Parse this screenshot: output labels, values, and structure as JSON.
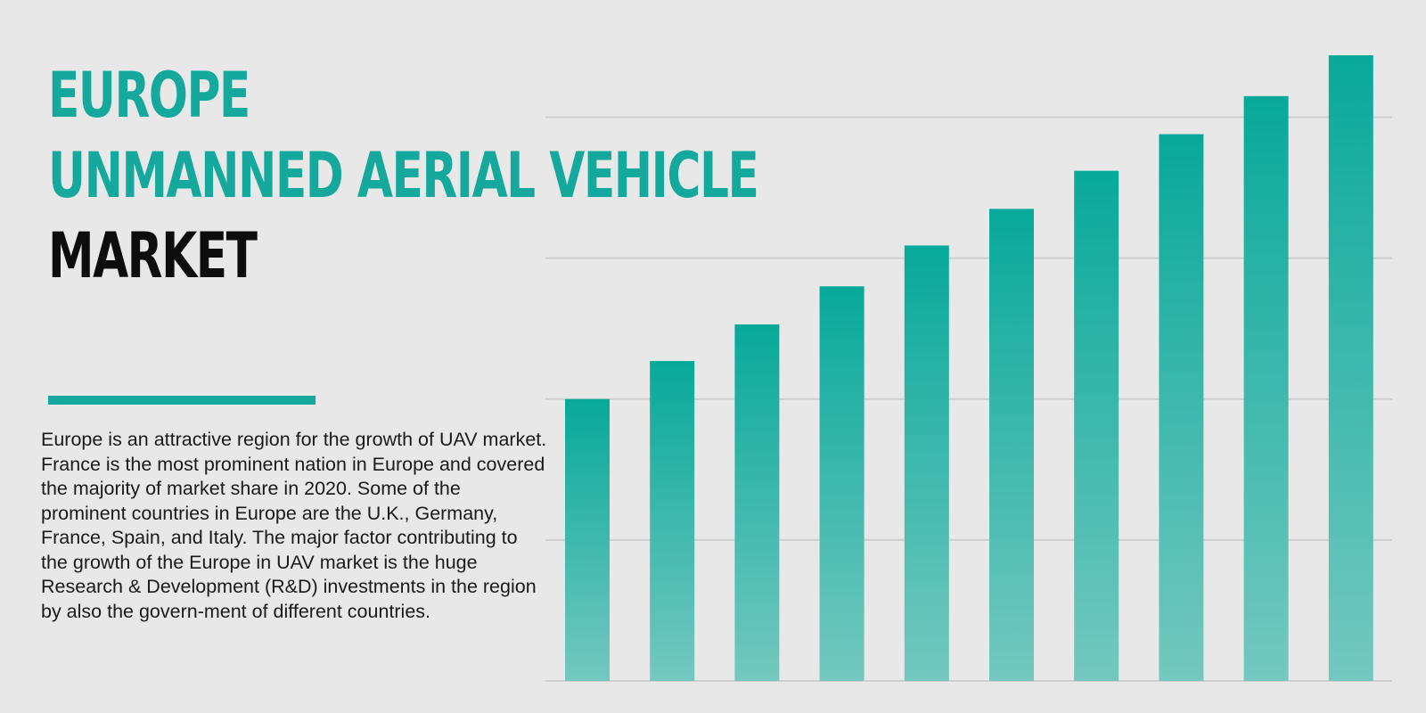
{
  "heading": {
    "line1": "EUROPE",
    "line2": "UNMANNED AERIAL VEHICLE",
    "line3": "MARKET"
  },
  "description": "Europe is an attractive region for the growth of UAV market. France is the most prominent nation in Europe and covered the majority of market share in 2020. Some of the prominent countries in Europe are the U.K., Germany, France, Spain, and Italy. The major factor contributing to the growth of the Europe in UAV market is the huge Research & Development (R&D) investments in the region by also the govern-ment of different countries.",
  "colors": {
    "accent": "#14a99c",
    "bar_top": "#08a99a",
    "bar_bottom": "#74c8bf",
    "gridline": "#cfcfcf",
    "text": "#1a1a1a",
    "background": "#e8e8e8"
  },
  "chart_data": {
    "type": "bar",
    "values": [
      2.0,
      2.27,
      2.53,
      2.8,
      3.09,
      3.35,
      3.62,
      3.88,
      4.15,
      4.44
    ],
    "ylim": [
      0,
      4.44
    ],
    "grid": true,
    "gridline_values": [
      1,
      2,
      3,
      4
    ],
    "axis_labels": false,
    "legend": "none"
  }
}
